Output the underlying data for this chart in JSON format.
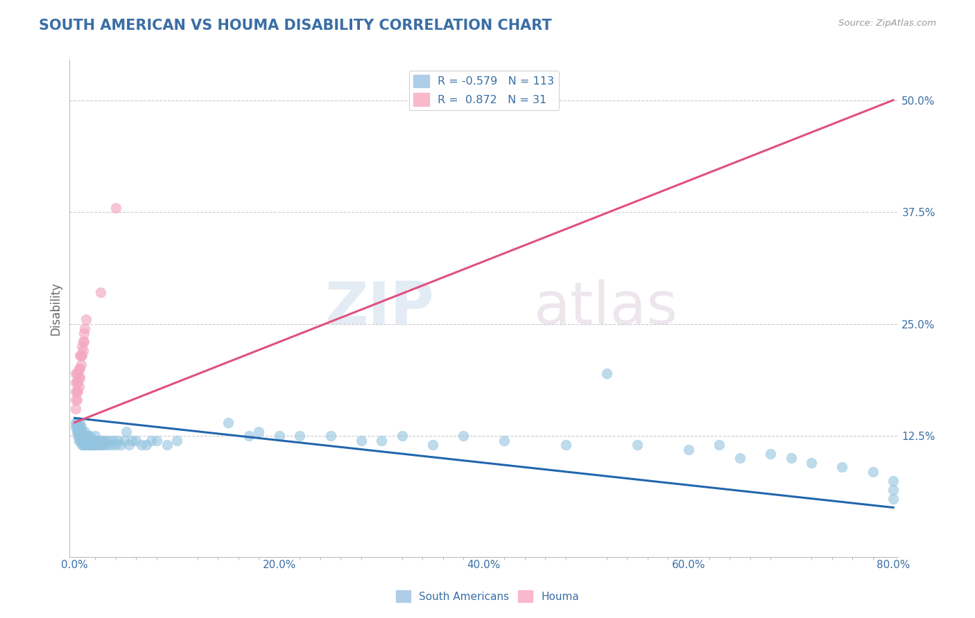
{
  "title": "SOUTH AMERICAN VS HOUMA DISABILITY CORRELATION CHART",
  "source_text": "Source: ZipAtlas.com",
  "ylabel": "Disability",
  "watermark_zip": "ZIP",
  "watermark_atlas": "atlas",
  "blue_R": -0.579,
  "blue_N": 113,
  "pink_R": 0.872,
  "pink_N": 31,
  "blue_label": "South Americans",
  "pink_label": "Houma",
  "blue_color": "#93c4e0",
  "pink_color": "#f4a8bf",
  "blue_line_color": "#2166ac",
  "pink_line_color": "#e05080",
  "xlim": [
    -0.005,
    0.805
  ],
  "ylim": [
    -0.01,
    0.545
  ],
  "xticks": [
    0.0,
    0.1,
    0.2,
    0.3,
    0.4,
    0.5,
    0.6,
    0.7,
    0.8
  ],
  "yticks": [
    0.125,
    0.25,
    0.375,
    0.5
  ],
  "xticklabels_major": [
    "0.0%",
    "",
    "20.0%",
    "",
    "40.0%",
    "",
    "60.0%",
    "",
    "80.0%"
  ],
  "yticklabels": [
    "12.5%",
    "25.0%",
    "37.5%",
    "50.0%"
  ],
  "grid_color": "#cccccc",
  "background_color": "#ffffff",
  "title_color": "#3a6ea5",
  "title_fontsize": 15,
  "axis_label_color": "#666666",
  "tick_label_color": "#3a6ea5",
  "blue_scatter_x": [
    0.001,
    0.001,
    0.002,
    0.002,
    0.002,
    0.003,
    0.003,
    0.003,
    0.003,
    0.004,
    0.004,
    0.004,
    0.004,
    0.005,
    0.005,
    0.005,
    0.005,
    0.005,
    0.006,
    0.006,
    0.006,
    0.006,
    0.007,
    0.007,
    0.007,
    0.007,
    0.008,
    0.008,
    0.008,
    0.009,
    0.009,
    0.009,
    0.01,
    0.01,
    0.01,
    0.011,
    0.011,
    0.012,
    0.012,
    0.012,
    0.013,
    0.013,
    0.014,
    0.014,
    0.015,
    0.015,
    0.015,
    0.016,
    0.016,
    0.017,
    0.017,
    0.018,
    0.018,
    0.019,
    0.02,
    0.02,
    0.021,
    0.022,
    0.023,
    0.024,
    0.025,
    0.026,
    0.027,
    0.028,
    0.029,
    0.03,
    0.032,
    0.034,
    0.036,
    0.038,
    0.04,
    0.042,
    0.045,
    0.048,
    0.05,
    0.053,
    0.056,
    0.06,
    0.065,
    0.07,
    0.075,
    0.08,
    0.09,
    0.1,
    0.15,
    0.18,
    0.2,
    0.25,
    0.3,
    0.35,
    0.38,
    0.42,
    0.48,
    0.52,
    0.55,
    0.6,
    0.63,
    0.65,
    0.68,
    0.7,
    0.72,
    0.75,
    0.78,
    0.8,
    0.8,
    0.8,
    0.32,
    0.28,
    0.22,
    0.17
  ],
  "blue_scatter_y": [
    0.135,
    0.14,
    0.13,
    0.135,
    0.14,
    0.125,
    0.13,
    0.135,
    0.14,
    0.12,
    0.125,
    0.13,
    0.135,
    0.12,
    0.125,
    0.13,
    0.135,
    0.14,
    0.12,
    0.125,
    0.13,
    0.135,
    0.115,
    0.12,
    0.125,
    0.13,
    0.115,
    0.12,
    0.125,
    0.115,
    0.12,
    0.125,
    0.12,
    0.125,
    0.13,
    0.115,
    0.12,
    0.115,
    0.12,
    0.125,
    0.12,
    0.125,
    0.115,
    0.12,
    0.115,
    0.12,
    0.125,
    0.115,
    0.12,
    0.115,
    0.12,
    0.115,
    0.12,
    0.115,
    0.12,
    0.125,
    0.12,
    0.115,
    0.12,
    0.115,
    0.115,
    0.12,
    0.115,
    0.12,
    0.115,
    0.12,
    0.115,
    0.12,
    0.115,
    0.12,
    0.115,
    0.12,
    0.115,
    0.12,
    0.13,
    0.115,
    0.12,
    0.12,
    0.115,
    0.115,
    0.12,
    0.12,
    0.115,
    0.12,
    0.14,
    0.13,
    0.125,
    0.125,
    0.12,
    0.115,
    0.125,
    0.12,
    0.115,
    0.195,
    0.115,
    0.11,
    0.115,
    0.1,
    0.105,
    0.1,
    0.095,
    0.09,
    0.085,
    0.075,
    0.065,
    0.055,
    0.125,
    0.12,
    0.125,
    0.125
  ],
  "pink_scatter_x": [
    0.001,
    0.001,
    0.001,
    0.001,
    0.001,
    0.002,
    0.002,
    0.002,
    0.002,
    0.003,
    0.003,
    0.003,
    0.004,
    0.004,
    0.004,
    0.005,
    0.005,
    0.005,
    0.006,
    0.006,
    0.007,
    0.007,
    0.008,
    0.008,
    0.009,
    0.009,
    0.01,
    0.011,
    0.025,
    0.04
  ],
  "pink_scatter_y": [
    0.155,
    0.165,
    0.175,
    0.185,
    0.195,
    0.165,
    0.175,
    0.185,
    0.195,
    0.175,
    0.185,
    0.195,
    0.18,
    0.19,
    0.2,
    0.19,
    0.2,
    0.215,
    0.205,
    0.215,
    0.215,
    0.225,
    0.22,
    0.23,
    0.23,
    0.24,
    0.245,
    0.255,
    0.285,
    0.38
  ],
  "pink_trendline_x": [
    0.0,
    0.8
  ],
  "pink_trendline_y": [
    0.14,
    0.5
  ],
  "blue_trendline_x": [
    0.0,
    0.8
  ],
  "blue_trendline_y": [
    0.145,
    0.045
  ]
}
